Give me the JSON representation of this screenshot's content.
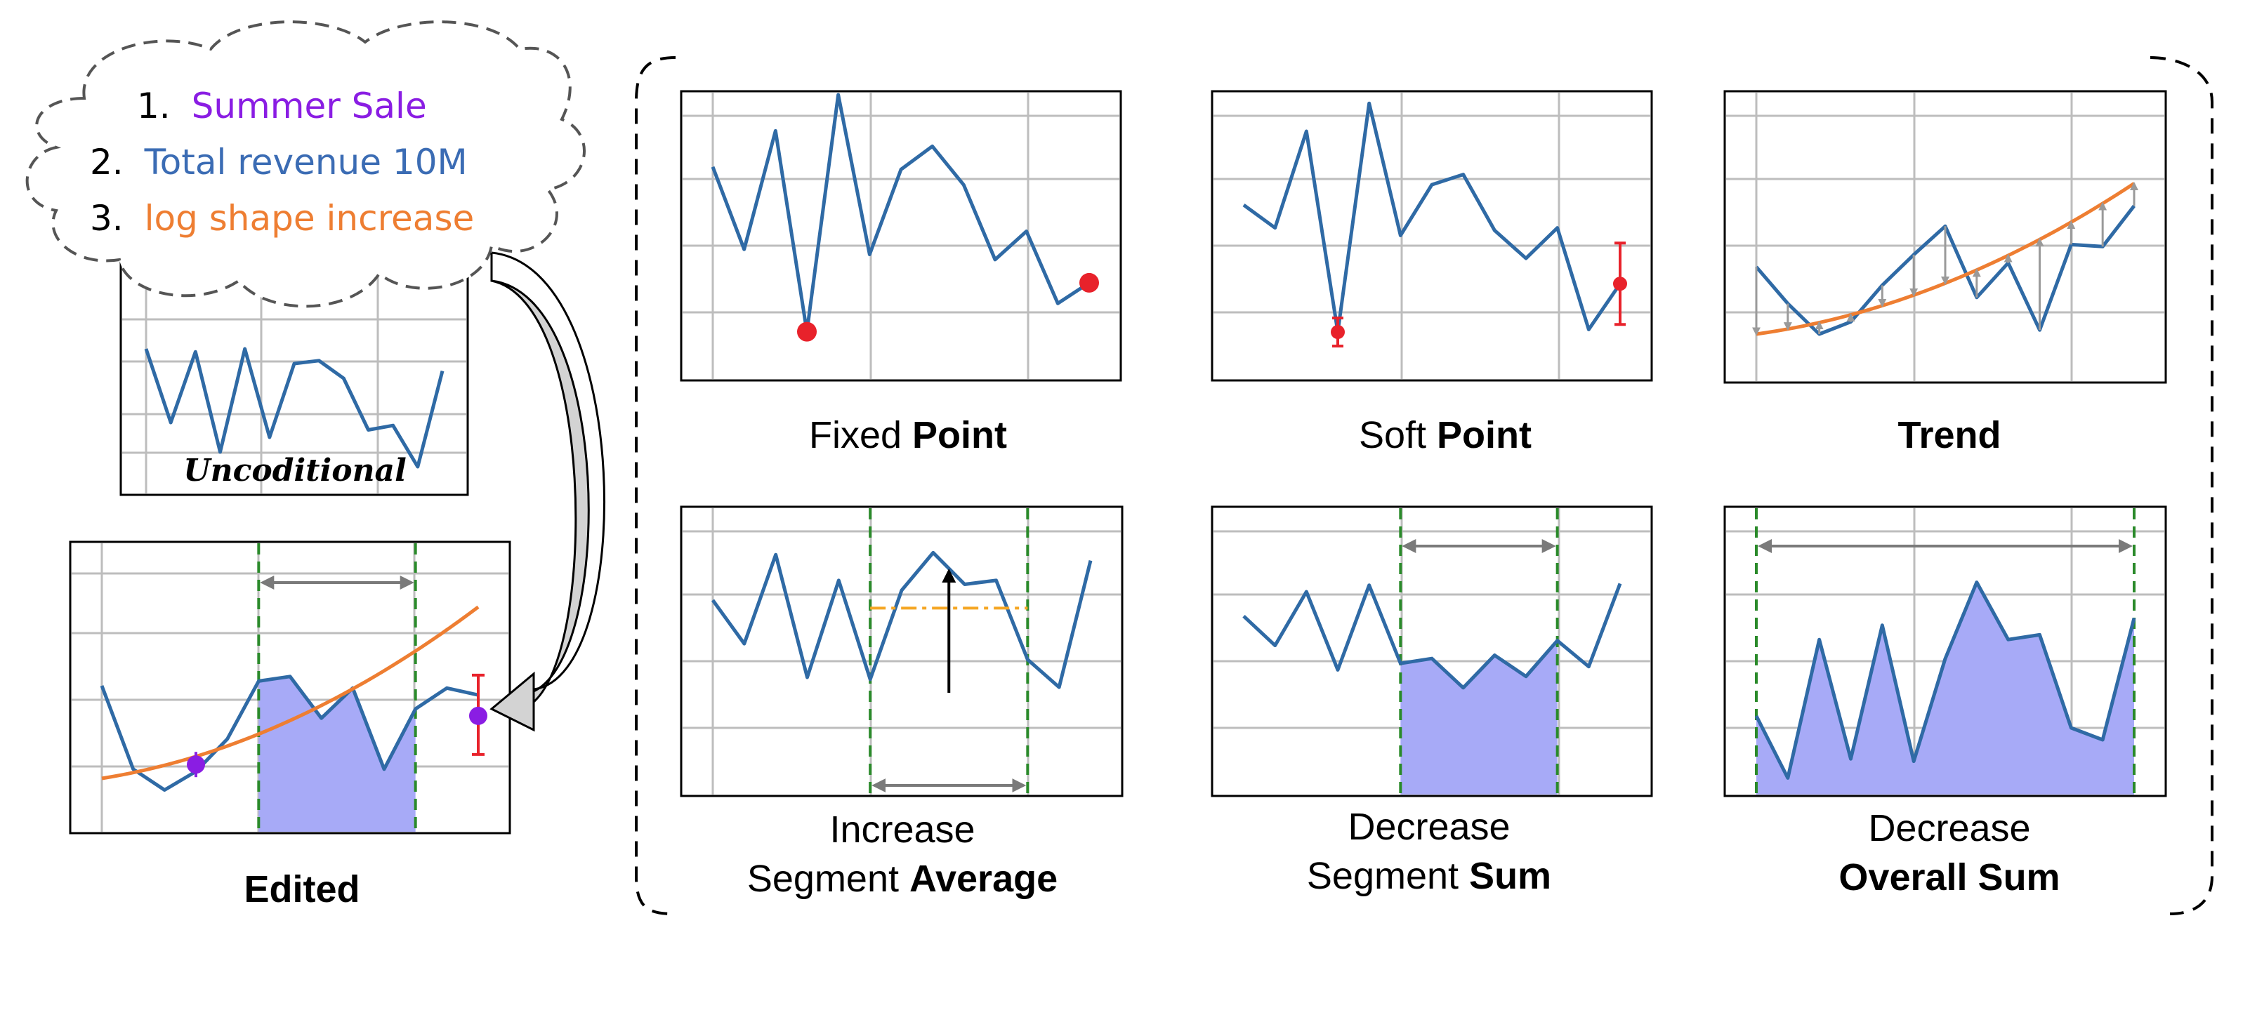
{
  "colors": {
    "series": "#2f6aa5",
    "trend": "#ee7e32",
    "fill": "#a7aaf7",
    "boundary": "#2a8a2a",
    "arrow": "#7a7a7a",
    "point_red": "#e8222b",
    "point_purple": "#8a1de3",
    "grid": "#bdbdbd",
    "avg_line": "#f5a623"
  },
  "cloud": {
    "items": [
      {
        "num": "1.",
        "text": "Summer Sale",
        "color": "#8a1de3"
      },
      {
        "num": "2.",
        "text": "Total revenue 10M",
        "color": "#3b6cb4"
      },
      {
        "num": "3.",
        "text": "log shape increase",
        "color": "#ee7e32"
      }
    ]
  },
  "labels": {
    "unconditional": "Uncoditional",
    "edited": "Edited",
    "fixed_point": {
      "plain": "Fixed ",
      "bold": "Point"
    },
    "soft_point": {
      "plain": "Soft ",
      "bold": "Point"
    },
    "trend": {
      "bold": "Trend"
    },
    "seg_avg": {
      "line1": "Increase",
      "plain": "Segment ",
      "bold": "Average"
    },
    "seg_sum": {
      "line1": "Decrease",
      "plain": "Segment ",
      "bold": "Sum"
    },
    "overall_sum": {
      "line1": "Decrease",
      "bold": "Overall Sum"
    }
  },
  "chart_data": [
    {
      "type": "line",
      "name": "unconditional",
      "values": [
        0.8,
        0.3,
        0.78,
        0.1,
        0.8,
        0.2,
        0.7,
        0.72,
        0.6,
        0.25,
        0.28,
        0.0,
        0.65
      ]
    },
    {
      "type": "line",
      "name": "edited",
      "values": [
        0.5,
        0.14,
        0.05,
        0.13,
        0.27,
        0.52,
        0.54,
        0.36,
        0.49,
        0.14,
        0.4,
        0.49,
        0.46
      ],
      "trend": [
        0.1,
        0.84
      ],
      "fill_range": [
        5,
        10
      ],
      "points": [
        {
          "x": 3,
          "y": 0.16,
          "style": "purple"
        },
        {
          "x": 12,
          "y": 0.37,
          "style": "red_err"
        }
      ]
    },
    {
      "type": "line",
      "name": "fixed_point",
      "values": [
        0.72,
        0.4,
        0.86,
        0.08,
        1.0,
        0.38,
        0.71,
        0.8,
        0.65,
        0.36,
        0.47,
        0.19,
        0.27
      ],
      "points": [
        {
          "x": 3,
          "y": 0.08
        },
        {
          "x": 12,
          "y": 0.27
        }
      ]
    },
    {
      "type": "line",
      "name": "soft_point",
      "values": [
        0.58,
        0.49,
        0.87,
        0.08,
        0.98,
        0.46,
        0.66,
        0.7,
        0.48,
        0.37,
        0.49,
        0.09,
        0.27
      ],
      "points": [
        {
          "x": 3,
          "y": 0.08
        },
        {
          "x": 12,
          "y": 0.27
        }
      ]
    },
    {
      "type": "line",
      "name": "trend",
      "values": [
        0.43,
        0.25,
        0.1,
        0.16,
        0.34,
        0.49,
        0.63,
        0.28,
        0.45,
        0.12,
        0.54,
        0.53,
        0.73
      ],
      "trend": [
        0.1,
        0.84
      ]
    },
    {
      "type": "line",
      "name": "seg_avg",
      "values": [
        0.67,
        0.45,
        0.9,
        0.28,
        0.77,
        0.27,
        0.72,
        0.91,
        0.75,
        0.77,
        0.37,
        0.23,
        0.87
      ],
      "avg_level": 0.63,
      "segment": [
        5,
        10
      ]
    },
    {
      "type": "line",
      "name": "seg_sum",
      "values": [
        0.63,
        0.45,
        0.78,
        0.3,
        0.82,
        0.34,
        0.37,
        0.19,
        0.39,
        0.26,
        0.48,
        0.32,
        0.83
      ],
      "fill_range": [
        5,
        10
      ]
    },
    {
      "type": "line",
      "name": "overall_sum",
      "values": [
        0.3,
        0.04,
        0.62,
        0.12,
        0.68,
        0.11,
        0.54,
        0.86,
        0.62,
        0.64,
        0.25,
        0.2,
        0.71
      ],
      "fill_range": [
        0,
        12
      ]
    }
  ]
}
